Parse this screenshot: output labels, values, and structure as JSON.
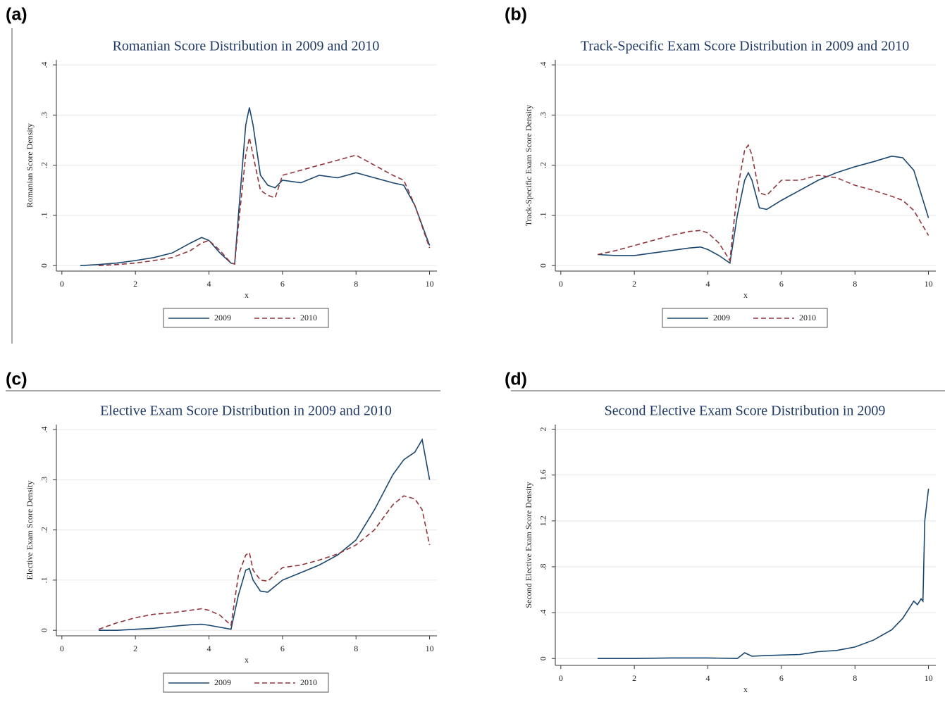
{
  "chart_data": [
    {
      "type": "line",
      "label": "(a)",
      "title": "Romanian Score Distribution in 2009 and 2010",
      "ylabel": "Romanian Score Density",
      "xlabel": "x",
      "x": [
        0.5,
        1,
        1.5,
        2,
        2.5,
        3,
        3.5,
        3.8,
        4,
        4.3,
        4.6,
        4.7,
        4.8,
        5,
        5.1,
        5.2,
        5.4,
        5.6,
        5.8,
        6,
        6.5,
        7,
        7.5,
        8,
        8.5,
        9,
        9.3,
        9.6,
        10
      ],
      "series": [
        {
          "name": "2009",
          "color": "#1a476f",
          "style": "solid",
          "values": [
            0,
            0.002,
            0.005,
            0.01,
            0.016,
            0.025,
            0.045,
            0.056,
            0.05,
            0.025,
            0.005,
            0.003,
            0.1,
            0.28,
            0.315,
            0.28,
            0.18,
            0.16,
            0.155,
            0.17,
            0.165,
            0.18,
            0.175,
            0.185,
            0.175,
            0.165,
            0.16,
            0.12,
            0.04
          ]
        },
        {
          "name": "2010",
          "color": "#90353b",
          "style": "dashed",
          "values": [
            null,
            0,
            0.002,
            0.005,
            0.01,
            0.016,
            0.03,
            0.045,
            0.05,
            0.03,
            0.005,
            0.003,
            0.08,
            0.22,
            0.255,
            0.22,
            0.15,
            0.14,
            0.135,
            0.18,
            0.19,
            0.2,
            0.21,
            0.22,
            0.2,
            0.18,
            0.17,
            0.12,
            0.035
          ]
        }
      ],
      "xlim": [
        -0.15,
        10.2
      ],
      "ylim": [
        -0.011,
        0.41
      ],
      "xticks": [
        0,
        2,
        4,
        6,
        8,
        10
      ],
      "yticks": [
        0,
        {
          "value": 0.1,
          "label": ".1"
        },
        {
          "value": 0.2,
          "label": ".2"
        },
        {
          "value": 0.3,
          "label": ".3"
        },
        {
          "value": 0.4,
          "label": ".4"
        }
      ],
      "grid": true,
      "legend": "bottom"
    },
    {
      "type": "line",
      "label": "(b)",
      "title": "Track-Specific Exam Score Distribution in 2009 and 2010",
      "ylabel": "Track-Specific Exam Score Density",
      "xlabel": "x",
      "x": [
        1,
        1.5,
        2,
        2.5,
        3,
        3.5,
        3.8,
        4,
        4.3,
        4.6,
        4.8,
        5,
        5.1,
        5.2,
        5.4,
        5.6,
        6,
        6.5,
        7,
        7.5,
        8,
        8.5,
        9,
        9.3,
        9.6,
        10
      ],
      "series": [
        {
          "name": "2009",
          "color": "#1a476f",
          "style": "solid",
          "values": [
            0.022,
            0.02,
            0.02,
            0.025,
            0.03,
            0.035,
            0.037,
            0.032,
            0.02,
            0.005,
            0.1,
            0.17,
            0.185,
            0.17,
            0.115,
            0.112,
            0.13,
            0.15,
            0.17,
            0.185,
            0.197,
            0.207,
            0.218,
            0.215,
            0.19,
            0.095
          ]
        },
        {
          "name": "2010",
          "color": "#90353b",
          "style": "dashed",
          "values": [
            0.022,
            0.03,
            0.04,
            0.05,
            0.06,
            0.068,
            0.07,
            0.065,
            0.045,
            0.01,
            0.15,
            0.23,
            0.24,
            0.22,
            0.145,
            0.14,
            0.17,
            0.17,
            0.18,
            0.175,
            0.16,
            0.15,
            0.138,
            0.13,
            0.11,
            0.06
          ]
        }
      ],
      "xlim": [
        -0.15,
        10.2
      ],
      "ylim": [
        -0.011,
        0.41
      ],
      "xticks": [
        0,
        2,
        4,
        6,
        8,
        10
      ],
      "yticks": [
        0,
        {
          "value": 0.1,
          "label": ".1"
        },
        {
          "value": 0.2,
          "label": ".2"
        },
        {
          "value": 0.3,
          "label": ".3"
        },
        {
          "value": 0.4,
          "label": ".4"
        }
      ],
      "grid": true,
      "legend": "bottom"
    },
    {
      "type": "line",
      "label": "(c)",
      "title": "Elective Exam Score Distribution in 2009 and 2010",
      "ylabel": "Elective Exam Score Density",
      "xlabel": "x",
      "x": [
        1,
        1.5,
        2,
        2.5,
        3,
        3.5,
        3.8,
        4,
        4.3,
        4.6,
        4.8,
        5,
        5.1,
        5.2,
        5.4,
        5.6,
        6,
        6.5,
        7,
        7.5,
        8,
        8.5,
        9,
        9.3,
        9.6,
        9.8,
        10
      ],
      "series": [
        {
          "name": "2009",
          "color": "#1a476f",
          "style": "solid",
          "values": [
            0,
            0,
            0.002,
            0.004,
            0.008,
            0.011,
            0.012,
            0.01,
            0.006,
            0.002,
            0.07,
            0.12,
            0.123,
            0.1,
            0.078,
            0.076,
            0.1,
            0.115,
            0.13,
            0.15,
            0.18,
            0.24,
            0.31,
            0.34,
            0.355,
            0.38,
            0.3
          ]
        },
        {
          "name": "2010",
          "color": "#90353b",
          "style": "dashed",
          "values": [
            0.002,
            0.015,
            0.025,
            0.032,
            0.035,
            0.04,
            0.043,
            0.04,
            0.03,
            0.01,
            0.11,
            0.15,
            0.155,
            0.12,
            0.1,
            0.098,
            0.125,
            0.13,
            0.14,
            0.152,
            0.17,
            0.2,
            0.25,
            0.268,
            0.262,
            0.24,
            0.17
          ]
        }
      ],
      "xlim": [
        -0.15,
        10.2
      ],
      "ylim": [
        -0.011,
        0.41
      ],
      "xticks": [
        0,
        2,
        4,
        6,
        8,
        10
      ],
      "yticks": [
        0,
        {
          "value": 0.1,
          "label": ".1"
        },
        {
          "value": 0.2,
          "label": ".2"
        },
        {
          "value": 0.3,
          "label": ".3"
        },
        {
          "value": 0.4,
          "label": ".4"
        }
      ],
      "grid": true,
      "legend": "bottom"
    },
    {
      "type": "line",
      "label": "(d)",
      "title": "Second Elective Exam Score Distribution in 2009",
      "ylabel": "Second Elective Exam Score Density",
      "xlabel": "x",
      "x": [
        1,
        2,
        3,
        4,
        4.8,
        5,
        5.2,
        5.5,
        6,
        6.5,
        7,
        7.5,
        8,
        8.5,
        9,
        9.3,
        9.5,
        9.6,
        9.7,
        9.8,
        9.85,
        9.9,
        10
      ],
      "series": [
        {
          "color": "#1a476f",
          "style": "solid",
          "values": [
            0,
            0,
            0.005,
            0.005,
            0,
            0.05,
            0.02,
            0.025,
            0.03,
            0.035,
            0.06,
            0.07,
            0.1,
            0.16,
            0.25,
            0.35,
            0.45,
            0.5,
            0.47,
            0.52,
            0.5,
            1.2,
            1.48
          ]
        }
      ],
      "xlim": [
        -0.15,
        10.2
      ],
      "ylim": [
        -0.06,
        2.04
      ],
      "xticks": [
        0,
        2,
        4,
        6,
        8,
        10
      ],
      "yticks": [
        0,
        {
          "value": 0.4,
          "label": ".4"
        },
        {
          "value": 0.8,
          "label": ".8"
        },
        1.2,
        1.6,
        2
      ],
      "grid": true
    }
  ]
}
